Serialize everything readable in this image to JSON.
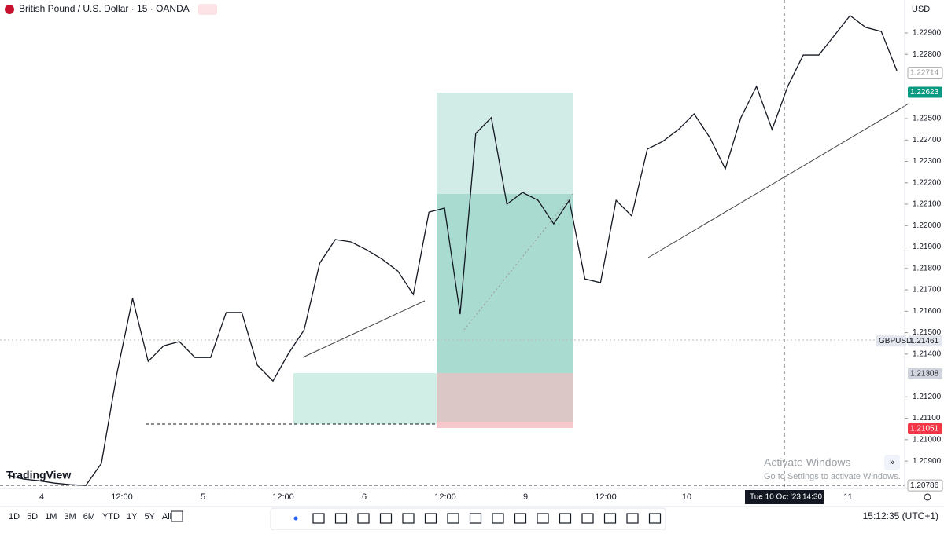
{
  "header": {
    "symbol": "British Pound / U.S. Dollar · 15 · OANDA",
    "currency": "USD"
  },
  "logo": "TradingView",
  "chart_data": {
    "type": "line",
    "series": [
      {
        "name": "GBPUSD",
        "color": "#131722",
        "values": [
          1.20834,
          1.20816,
          1.20808,
          1.20797,
          1.2079,
          1.20786,
          1.20889,
          1.21311,
          1.2166,
          1.21366,
          1.21439,
          1.21458,
          1.21384,
          1.21384,
          1.21594,
          1.21594,
          1.21348,
          1.21274,
          1.21403,
          1.21513,
          1.21825,
          1.21935,
          1.21924,
          1.21887,
          1.21843,
          1.21788,
          1.21678,
          1.22063,
          1.22082,
          1.21586,
          1.2243,
          1.22504,
          1.221,
          1.22155,
          1.22118,
          1.22008,
          1.22118,
          1.21751,
          1.21733,
          1.22118,
          1.22045,
          1.22357,
          1.22394,
          1.22449,
          1.22522,
          1.22412,
          1.22265,
          1.22504,
          1.2265,
          1.22449,
          1.2265,
          1.22797,
          1.22797,
          1.22889,
          1.22981,
          1.22926,
          1.22907,
          1.22724
        ]
      }
    ],
    "ylim": [
      1.20772,
      1.23054
    ],
    "yticks": [
      {
        "value": 1.229,
        "label": "1.22900"
      },
      {
        "value": 1.228,
        "label": "1.22800"
      },
      {
        "value": 1.225,
        "label": "1.22500"
      },
      {
        "value": 1.224,
        "label": "1.22400"
      },
      {
        "value": 1.223,
        "label": "1.22300"
      },
      {
        "value": 1.222,
        "label": "1.22200"
      },
      {
        "value": 1.221,
        "label": "1.22100"
      },
      {
        "value": 1.22,
        "label": "1.22000"
      },
      {
        "value": 1.219,
        "label": "1.21900"
      },
      {
        "value": 1.218,
        "label": "1.21800"
      },
      {
        "value": 1.217,
        "label": "1.21700"
      },
      {
        "value": 1.216,
        "label": "1.21600"
      },
      {
        "value": 1.215,
        "label": "1.21500"
      },
      {
        "value": 1.214,
        "label": "1.21400"
      },
      {
        "value": 1.212,
        "label": "1.21200"
      },
      {
        "value": 1.211,
        "label": "1.21100"
      },
      {
        "value": 1.21,
        "label": "1.21000"
      },
      {
        "value": 1.209,
        "label": "1.20900"
      }
    ],
    "price_badges": [
      {
        "value": 1.22714,
        "label": "1.22714",
        "color": "#ffffff"
      },
      {
        "value": 1.22623,
        "label": "1.22623",
        "color": "#089981"
      },
      {
        "value": 1.21461,
        "label": "1.21461",
        "color": "#e3e6ec"
      },
      {
        "value": 1.21308,
        "label": "1.21308",
        "color": "#d1d4dc"
      },
      {
        "value": 1.21051,
        "label": "1.21051",
        "color": "#f23645"
      },
      {
        "value": 1.20786,
        "label": "1.20786",
        "color": "#ffffff"
      }
    ]
  },
  "time_axis": {
    "labels": [
      "4",
      "12:00",
      "5",
      "12:00",
      "6",
      "12:00",
      "9",
      "12:00",
      "10",
      "11"
    ],
    "crosshair_date": "Tue 10 Oct '23",
    "crosshair_time": "14:30"
  },
  "timeframes": [
    "1D",
    "5D",
    "1M",
    "3M",
    "6M",
    "YTD",
    "1Y",
    "5Y",
    "All"
  ],
  "clock": "15:12:35 (UTC+1)",
  "watermark": {
    "title": "Activate Windows",
    "text": "Go to Settings to activate Windows."
  }
}
